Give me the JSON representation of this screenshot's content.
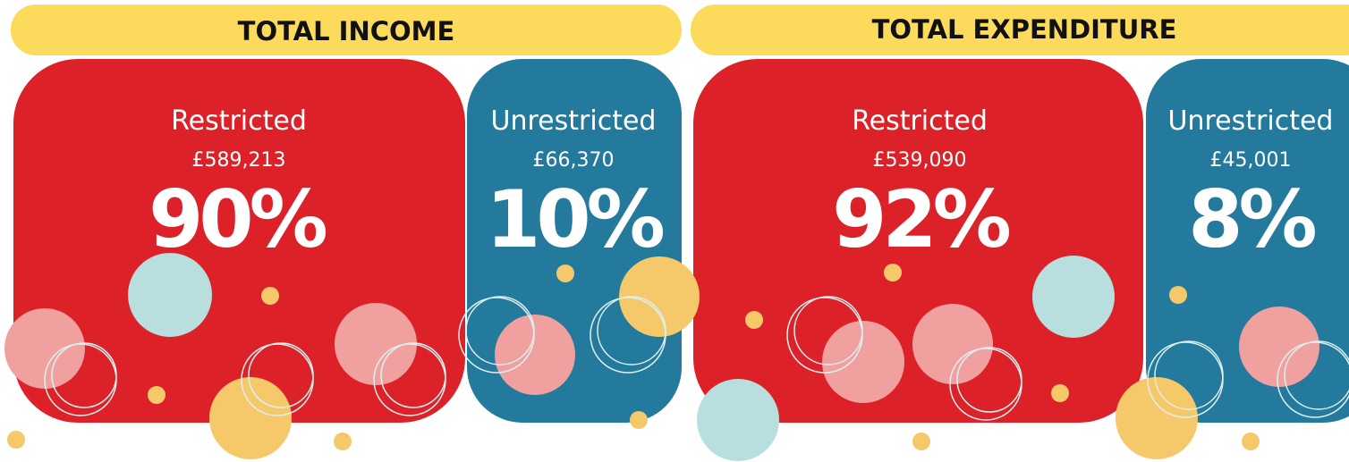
{
  "panels": [
    {
      "title": "TOTAL INCOME",
      "cards": [
        {
          "label": "Restricted",
          "amount": "£589,213",
          "percent": "90%"
        },
        {
          "label": "Unrestricted",
          "amount": "£66,370",
          "percent": "10%"
        }
      ]
    },
    {
      "title": "TOTAL EXPENDITURE",
      "cards": [
        {
          "label": "Restricted",
          "amount": "£539,090",
          "percent": "92%"
        },
        {
          "label": "Unrestricted",
          "amount": "£45,001",
          "percent": "8%"
        }
      ]
    }
  ]
}
